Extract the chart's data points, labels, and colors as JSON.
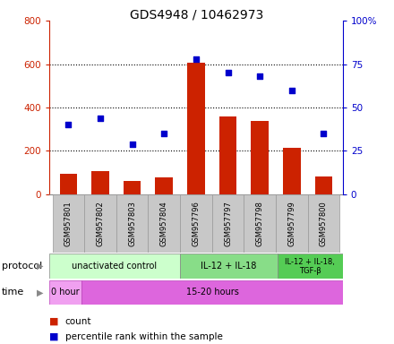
{
  "title": "GDS4948 / 10462973",
  "samples": [
    "GSM957801",
    "GSM957802",
    "GSM957803",
    "GSM957804",
    "GSM957796",
    "GSM957797",
    "GSM957798",
    "GSM957799",
    "GSM957800"
  ],
  "count_values": [
    95,
    108,
    62,
    78,
    605,
    360,
    340,
    215,
    82
  ],
  "percentile_values": [
    40,
    44,
    29,
    35,
    78,
    70,
    68,
    60,
    35
  ],
  "ylim_left": [
    0,
    800
  ],
  "ylim_right": [
    0,
    100
  ],
  "yticks_left": [
    0,
    200,
    400,
    600,
    800
  ],
  "yticks_right": [
    0,
    25,
    50,
    75,
    100
  ],
  "protocol_groups": [
    {
      "label": "unactivated control",
      "start": 0,
      "end": 4,
      "color": "#ccffcc"
    },
    {
      "label": "IL-12 + IL-18",
      "start": 4,
      "end": 7,
      "color": "#88dd88"
    },
    {
      "label": "IL-12 + IL-18,\nTGF-β",
      "start": 7,
      "end": 9,
      "color": "#55cc55"
    }
  ],
  "time_groups": [
    {
      "label": "0 hour",
      "start": 0,
      "end": 1,
      "color": "#f0a0f0"
    },
    {
      "label": "15-20 hours",
      "start": 1,
      "end": 9,
      "color": "#dd66dd"
    }
  ],
  "bar_color": "#cc2200",
  "dot_color": "#0000cc",
  "left_axis_color": "#cc2200",
  "right_axis_color": "#0000cc",
  "background_color": "#ffffff",
  "sample_box_color": "#c8c8c8",
  "sample_box_edge": "#999999"
}
